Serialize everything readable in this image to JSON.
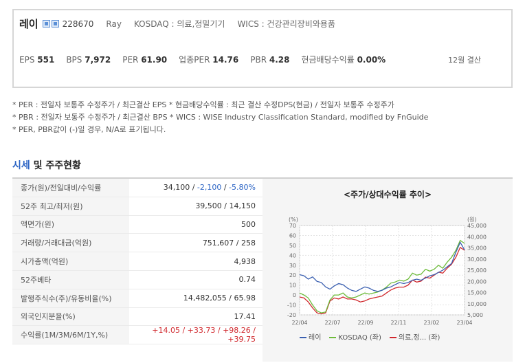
{
  "company": {
    "name": "레이",
    "code": "228670",
    "eng_name": "Ray",
    "market": "KOSDAQ : 의료,정밀기기",
    "wics": "WICS : 건강관리장비와용품",
    "icons": [
      "stock-icon",
      "document-icon"
    ]
  },
  "metrics": [
    {
      "label": "EPS",
      "value": "551"
    },
    {
      "label": "BPS",
      "value": "7,972"
    },
    {
      "label": "PER",
      "value": "61.90"
    },
    {
      "label": "업종PER",
      "value": "14.76"
    },
    {
      "label": "PBR",
      "value": "4.28"
    },
    {
      "label": "현금배당수익률",
      "value": "0.00%"
    }
  ],
  "settlement": "12월 결산",
  "notes": [
    "* PER : 전일자 보통주 수정주가 / 최근결산 EPS * 현금배당수익률 : 최근 결산 수정DPS(현금) / 전일자 보통주 수정주가",
    "* PBR : 전일자 보통주 수정주가 / 최근결산 BPS * WICS : WISE Industry Classification Standard, modified by FnGuide",
    "* PER, PBR값이 (-)일 경우, N/A로 표기됩니다."
  ],
  "section": {
    "title_accent": "시세",
    "title_rest": " 및 주주현황"
  },
  "table": {
    "rows": [
      {
        "label": "종가(원)/전일대비/수익률",
        "v1": "34,100",
        "v2": "-2,100",
        "v3": "-5.80%"
      },
      {
        "label": "52주 최고/최저(원)",
        "value": "39,500 / 14,150"
      },
      {
        "label": "액면가(원)",
        "value": "500"
      },
      {
        "label": "거래량/거래대금(억원)",
        "value": "751,607 / 258"
      },
      {
        "label": "시가총액(억원)",
        "value": "4,938"
      },
      {
        "label": "52주베타",
        "value": "0.74"
      },
      {
        "label": "발행주식수(주)/유동비율(%)",
        "value": "14,482,055 / 65.98"
      },
      {
        "label": "외국인지분율(%)",
        "value": "17.41"
      },
      {
        "label": "수익률(1M/3M/6M/1Y,%)",
        "r1": "+14.05",
        "r2": "+33.73",
        "r3": "+98.26",
        "r4": "+39.75"
      }
    ]
  },
  "chart_data": {
    "type": "line",
    "title": "<주가/상대수익률 추이>",
    "left_axis_unit": "(%)",
    "right_axis_unit": "(원)",
    "left_ticks": [
      70,
      60,
      50,
      40,
      30,
      20,
      10,
      0,
      -10,
      -20
    ],
    "right_ticks": [
      "45,000",
      "40,000",
      "35,000",
      "30,000",
      "25,000",
      "20,000",
      "15,000",
      "10,000",
      "5,000"
    ],
    "x_ticks": [
      "22/04",
      "22/07",
      "22/09",
      "22/11",
      "23/02",
      "23/04"
    ],
    "ylim_left": [
      -20,
      70
    ],
    "ylim_right": [
      5000,
      45000
    ],
    "series": [
      {
        "name": "레이",
        "color": "#3a5fb0",
        "axis": "right",
        "values": [
          23000,
          22500,
          21000,
          22000,
          20000,
          19500,
          17500,
          16500,
          18000,
          19000,
          18500,
          17000,
          16000,
          15500,
          16500,
          17500,
          17000,
          16000,
          15500,
          16000,
          17000,
          17500,
          18500,
          19500,
          19000,
          19500,
          20500,
          21000,
          20500,
          21500,
          22500,
          23000,
          24000,
          25000,
          26500,
          28000,
          33000,
          37500,
          34100
        ]
      },
      {
        "name": "KOSDAQ (좌)",
        "color": "#6dbb3a",
        "axis": "left",
        "values": [
          2,
          0,
          -3,
          -10,
          -16,
          -18,
          -17,
          -5,
          0,
          0,
          2,
          -2,
          -3,
          -2,
          0,
          2,
          1,
          2,
          3,
          5,
          8,
          12,
          13,
          15,
          14,
          16,
          22,
          20,
          21,
          26,
          24,
          26,
          30,
          27,
          33,
          38,
          45,
          55,
          52
        ]
      },
      {
        "name": "의료,정... (좌)",
        "color": "#d0272c",
        "axis": "left",
        "values": [
          -2,
          -3,
          -7,
          -13,
          -18,
          -19,
          -18,
          -6,
          -3,
          -4,
          -2,
          -4,
          -4,
          -5,
          -7,
          -6,
          -4,
          -3,
          -2,
          -1,
          2,
          5,
          7,
          8,
          8,
          10,
          15,
          13,
          14,
          18,
          17,
          20,
          23,
          22,
          27,
          31,
          38,
          48,
          45
        ]
      }
    ]
  }
}
